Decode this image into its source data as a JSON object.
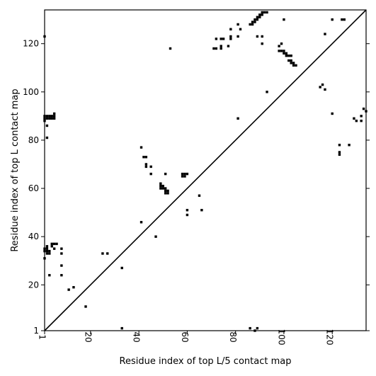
{
  "chart_data": {
    "type": "scatter",
    "title": "",
    "xlabel": "Residue index of top L/5 contact map",
    "ylabel": "Residue index of top L contact map",
    "xlim": [
      1,
      134
    ],
    "ylim": [
      1,
      134
    ],
    "x_ticks": [
      1,
      20,
      40,
      60,
      80,
      100,
      120
    ],
    "y_ticks": [
      1,
      20,
      40,
      60,
      80,
      100,
      120
    ],
    "diagonal": true,
    "grid": false,
    "legend": "none",
    "marker_color": "#000000",
    "series": [
      {
        "points": [
          [
            1,
            34
          ],
          [
            2,
            34
          ],
          [
            3,
            34
          ],
          [
            2,
            33
          ],
          [
            3,
            33
          ],
          [
            1,
            35
          ],
          [
            2,
            35
          ],
          [
            4,
            36
          ],
          [
            4,
            37
          ],
          [
            5,
            37
          ],
          [
            6,
            37
          ],
          [
            5,
            35
          ],
          [
            2,
            36
          ],
          [
            1,
            31
          ],
          [
            3,
            24
          ],
          [
            8,
            35
          ],
          [
            8,
            33
          ],
          [
            8,
            28
          ],
          [
            8,
            24
          ],
          [
            11,
            18
          ],
          [
            13,
            19
          ],
          [
            18,
            11
          ],
          [
            25,
            33
          ],
          [
            27,
            33
          ],
          [
            33,
            27
          ],
          [
            33,
            2
          ],
          [
            41,
            46
          ],
          [
            41,
            77
          ],
          [
            42,
            73
          ],
          [
            43,
            73
          ],
          [
            43,
            70
          ],
          [
            43,
            69
          ],
          [
            45,
            69
          ],
          [
            45,
            66
          ],
          [
            47,
            40
          ],
          [
            49,
            62
          ],
          [
            49,
            61
          ],
          [
            50,
            61
          ],
          [
            49,
            60
          ],
          [
            50,
            60
          ],
          [
            51,
            60
          ],
          [
            51,
            59
          ],
          [
            52,
            59
          ],
          [
            51,
            58
          ],
          [
            52,
            58
          ],
          [
            51,
            66
          ],
          [
            53,
            118
          ],
          [
            58,
            66
          ],
          [
            58,
            65
          ],
          [
            59,
            65
          ],
          [
            59,
            66
          ],
          [
            60,
            66
          ],
          [
            60,
            51
          ],
          [
            60,
            49
          ],
          [
            65,
            57
          ],
          [
            66,
            51
          ],
          [
            71,
            118
          ],
          [
            72,
            118
          ],
          [
            72,
            122
          ],
          [
            74,
            119
          ],
          [
            74,
            118
          ],
          [
            74,
            122
          ],
          [
            75,
            122
          ],
          [
            77,
            119
          ],
          [
            78,
            122
          ],
          [
            78,
            123
          ],
          [
            78,
            126
          ],
          [
            81,
            128
          ],
          [
            81,
            123
          ],
          [
            81,
            89
          ],
          [
            82,
            126
          ],
          [
            86,
            128
          ],
          [
            87,
            128
          ],
          [
            87,
            129
          ],
          [
            88,
            129
          ],
          [
            88,
            130
          ],
          [
            89,
            130
          ],
          [
            89,
            131
          ],
          [
            90,
            131
          ],
          [
            90,
            132
          ],
          [
            91,
            132
          ],
          [
            91,
            133
          ],
          [
            92,
            133
          ],
          [
            93,
            133
          ],
          [
            86,
            2
          ],
          [
            88,
            1
          ],
          [
            89,
            2
          ],
          [
            89,
            123
          ],
          [
            91,
            123
          ],
          [
            91,
            120
          ],
          [
            93,
            100
          ],
          [
            98,
            117
          ],
          [
            98,
            119
          ],
          [
            99,
            120
          ],
          [
            99,
            117
          ],
          [
            100,
            117
          ],
          [
            100,
            116
          ],
          [
            101,
            116
          ],
          [
            101,
            115
          ],
          [
            102,
            115
          ],
          [
            102,
            113
          ],
          [
            103,
            113
          ],
          [
            103,
            112
          ],
          [
            104,
            112
          ],
          [
            104,
            111
          ],
          [
            105,
            111
          ],
          [
            103,
            115
          ],
          [
            100,
            130
          ],
          [
            115,
            102
          ],
          [
            116,
            103
          ],
          [
            117,
            101
          ],
          [
            117,
            124
          ],
          [
            120,
            130
          ],
          [
            120,
            91
          ],
          [
            123,
            78
          ],
          [
            123,
            75
          ],
          [
            123,
            74
          ],
          [
            124,
            130
          ],
          [
            125,
            130
          ],
          [
            127,
            78
          ],
          [
            129,
            89
          ],
          [
            130,
            88
          ],
          [
            132,
            90
          ],
          [
            132,
            88
          ],
          [
            133,
            93
          ],
          [
            134,
            92
          ],
          [
            1,
            90
          ],
          [
            1,
            89
          ],
          [
            1,
            88
          ],
          [
            2,
            90
          ],
          [
            2,
            89
          ],
          [
            3,
            90
          ],
          [
            3,
            89
          ],
          [
            4,
            90
          ],
          [
            4,
            89
          ],
          [
            5,
            90
          ],
          [
            5,
            91
          ],
          [
            5,
            89
          ],
          [
            1,
            123
          ],
          [
            2,
            86
          ],
          [
            2,
            81
          ]
        ]
      }
    ]
  }
}
